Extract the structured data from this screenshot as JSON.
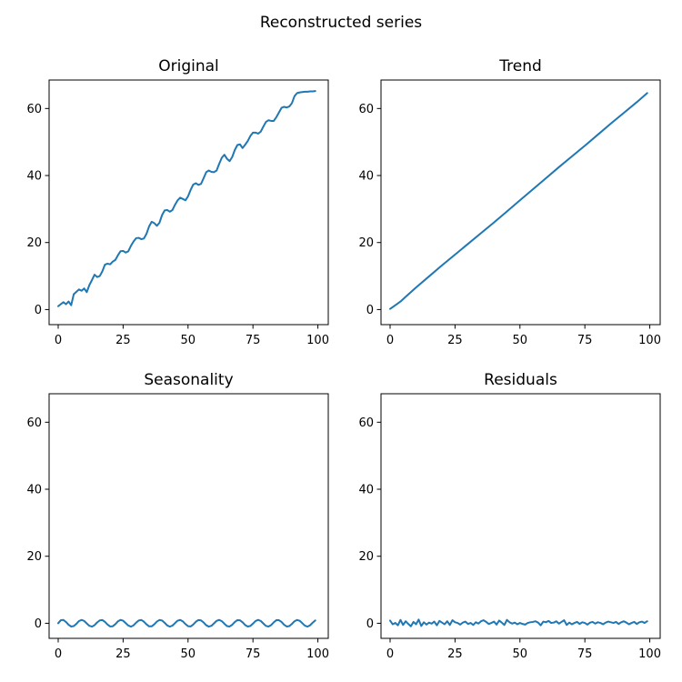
{
  "figure_title": "Reconstructed series",
  "chart_data": [
    {
      "type": "line",
      "title": "Original",
      "xlabel": "",
      "ylabel": "",
      "xlim": [
        -3.5,
        104
      ],
      "ylim": [
        -4.5,
        68.5
      ],
      "x_ticks": [
        0,
        25,
        50,
        75,
        100
      ],
      "y_ticks": [
        0,
        20,
        40,
        60
      ],
      "grid": false,
      "color": "#1f77b4",
      "series": [
        {
          "x": [
            0,
            1,
            2,
            3,
            4,
            5,
            6,
            7,
            8,
            9,
            10,
            11,
            12,
            13,
            14,
            15,
            16,
            17,
            18,
            19,
            20,
            21,
            22,
            23,
            24,
            25,
            26,
            27,
            28,
            29,
            30,
            31,
            32,
            33,
            34,
            35,
            36,
            37,
            38,
            39,
            40,
            41,
            42,
            43,
            44,
            45,
            46,
            47,
            48,
            49,
            50,
            51,
            52,
            53,
            54,
            55,
            56,
            57,
            58,
            59,
            60,
            61,
            62,
            63,
            64,
            65,
            66,
            67,
            68,
            69,
            70,
            71,
            72,
            73,
            74,
            75,
            76,
            77,
            78,
            79,
            80,
            81,
            82,
            83,
            84,
            85,
            86,
            87,
            88,
            89,
            90,
            91,
            92,
            93,
            94,
            95,
            96,
            97,
            98,
            99
          ],
          "values": [
            1.0,
            1.6,
            2.2,
            1.6,
            2.4,
            1.3,
            4.6,
            5.3,
            6.0,
            5.6,
            6.3,
            5.2,
            7.3,
            8.8,
            10.4,
            9.7,
            10.0,
            11.4,
            13.4,
            13.7,
            13.5,
            14.3,
            14.8,
            16.2,
            17.4,
            17.5,
            17.0,
            17.4,
            19.0,
            20.3,
            21.3,
            21.4,
            21.0,
            21.2,
            22.6,
            24.8,
            26.2,
            25.8,
            25.0,
            25.9,
            28.2,
            29.6,
            29.7,
            29.2,
            29.7,
            31.3,
            32.6,
            33.4,
            33.0,
            32.6,
            33.8,
            35.7,
            37.3,
            37.7,
            37.2,
            37.5,
            39.2,
            41.0,
            41.5,
            41.1,
            41.0,
            41.5,
            43.5,
            45.3,
            46.2,
            45.0,
            44.3,
            45.5,
            47.6,
            49.1,
            49.3,
            48.2,
            49.2,
            50.3,
            51.8,
            52.8,
            52.8,
            52.5,
            53.1,
            54.6,
            56.0,
            56.5,
            56.3,
            56.3,
            57.4,
            58.8,
            60.2,
            60.5,
            60.3,
            60.6,
            61.6,
            63.7,
            64.6,
            64.8,
            64.9,
            65.0,
            65.0,
            65.1,
            65.1,
            65.2
          ]
        }
      ]
    },
    {
      "type": "line",
      "title": "Trend",
      "xlabel": "",
      "ylabel": "",
      "xlim": [
        -3.5,
        104
      ],
      "ylim": [
        -4.5,
        68.5
      ],
      "x_ticks": [
        0,
        25,
        50,
        75,
        100
      ],
      "y_ticks": [
        0,
        20,
        40,
        60
      ],
      "grid": false,
      "color": "#1f77b4",
      "series": [
        {
          "x": [
            0,
            2,
            4,
            6,
            8,
            10,
            15,
            20,
            25,
            30,
            35,
            40,
            45,
            50,
            55,
            60,
            65,
            70,
            75,
            80,
            85,
            90,
            95,
            99
          ],
          "values": [
            0.2,
            1.3,
            2.4,
            3.8,
            5.2,
            6.6,
            9.9,
            13.2,
            16.4,
            19.6,
            22.8,
            26.0,
            29.3,
            32.6,
            35.9,
            39.2,
            42.5,
            45.7,
            48.9,
            52.2,
            55.5,
            58.7,
            61.9,
            64.6
          ]
        }
      ]
    },
    {
      "type": "line",
      "title": "Seasonality",
      "xlabel": "",
      "ylabel": "",
      "xlim": [
        -3.5,
        104
      ],
      "ylim": [
        -4.5,
        68.5
      ],
      "x_ticks": [
        0,
        25,
        50,
        75,
        100
      ],
      "y_ticks": [
        0,
        20,
        40,
        60
      ],
      "grid": false,
      "color": "#1f77b4",
      "series": [
        {
          "x": [
            0,
            1,
            2,
            3,
            4,
            5,
            6,
            7,
            8,
            9,
            10,
            11,
            12,
            13,
            14,
            15,
            16,
            17,
            18,
            19,
            20,
            21,
            22,
            23,
            24,
            25,
            26,
            27,
            28,
            29,
            30,
            31,
            32,
            33,
            34,
            35,
            36,
            37,
            38,
            39,
            40,
            41,
            42,
            43,
            44,
            45,
            46,
            47,
            48,
            49,
            50,
            51,
            52,
            53,
            54,
            55,
            56,
            57,
            58,
            59,
            60,
            61,
            62,
            63,
            64,
            65,
            66,
            67,
            68,
            69,
            70,
            71,
            72,
            73,
            74,
            75,
            76,
            77,
            78,
            79,
            80,
            81,
            82,
            83,
            84,
            85,
            86,
            87,
            88,
            89,
            90,
            91,
            92,
            93,
            94,
            95,
            96,
            97,
            98,
            99
          ],
          "values": [
            0.0,
            0.91,
            1.0,
            0.39,
            -0.45,
            -0.97,
            -0.85,
            -0.17,
            0.66,
            1.0,
            0.69,
            -0.06,
            -0.76,
            -0.99,
            -0.56,
            0.25,
            0.86,
            0.96,
            0.43,
            -0.39,
            -0.94,
            -0.89,
            -0.27,
            0.58,
            0.99,
            0.77,
            0.05,
            -0.69,
            -1.0,
            -0.63,
            0.17,
            0.82,
            0.98,
            0.48,
            -0.32,
            -0.91,
            -0.92,
            -0.32,
            0.5,
            0.98,
            0.82,
            0.15,
            -0.65,
            -1.0,
            -0.7,
            0.07,
            0.78,
            0.99,
            0.56,
            -0.23,
            -0.88,
            -0.94,
            -0.38,
            0.45,
            0.97,
            0.86,
            0.24,
            -0.58,
            -0.99,
            -0.76,
            -0.02,
            0.72,
            1.0,
            0.63,
            -0.15,
            -0.84,
            -0.96,
            -0.46,
            0.37,
            0.94,
            0.89,
            0.31,
            -0.52,
            -0.98,
            -0.81,
            -0.1,
            0.67,
            1.0,
            0.69,
            -0.06,
            -0.79,
            -0.98,
            -0.54,
            0.28,
            0.91,
            0.92,
            0.39,
            -0.45,
            -0.96,
            -0.85,
            -0.19,
            0.6,
            0.99,
            0.75,
            0.03,
            -0.72,
            -1.0,
            -0.6,
            0.19,
            0.86
          ]
        }
      ]
    },
    {
      "type": "line",
      "title": "Residuals",
      "xlabel": "",
      "ylabel": "",
      "xlim": [
        -3.5,
        104
      ],
      "ylim": [
        -4.5,
        68.5
      ],
      "x_ticks": [
        0,
        25,
        50,
        75,
        100
      ],
      "y_ticks": [
        0,
        20,
        40,
        60
      ],
      "grid": false,
      "color": "#1f77b4",
      "series": [
        {
          "x": [
            0,
            1,
            2,
            3,
            4,
            5,
            6,
            7,
            8,
            9,
            10,
            11,
            12,
            13,
            14,
            15,
            16,
            17,
            18,
            19,
            20,
            21,
            22,
            23,
            24,
            25,
            26,
            27,
            28,
            29,
            30,
            31,
            32,
            33,
            34,
            35,
            36,
            37,
            38,
            39,
            40,
            41,
            42,
            43,
            44,
            45,
            46,
            47,
            48,
            49,
            50,
            51,
            52,
            53,
            54,
            55,
            56,
            57,
            58,
            59,
            60,
            61,
            62,
            63,
            64,
            65,
            66,
            67,
            68,
            69,
            70,
            71,
            72,
            73,
            74,
            75,
            76,
            77,
            78,
            79,
            80,
            81,
            82,
            83,
            84,
            85,
            86,
            87,
            88,
            89,
            90,
            91,
            92,
            93,
            94,
            95,
            96,
            97,
            98,
            99
          ],
          "values": [
            0.8,
            -0.3,
            0.1,
            -0.6,
            1.0,
            -0.5,
            0.6,
            -0.2,
            -0.9,
            0.4,
            -0.3,
            1.1,
            -0.8,
            0.3,
            -0.4,
            0.2,
            -0.1,
            0.5,
            -0.6,
            0.7,
            0.2,
            -0.3,
            0.6,
            -0.5,
            0.9,
            0.3,
            0.1,
            -0.4,
            0.2,
            0.5,
            -0.2,
            0.1,
            -0.5,
            0.3,
            -0.1,
            0.6,
            0.9,
            0.4,
            -0.2,
            0.1,
            0.5,
            -0.4,
            0.8,
            0.2,
            -0.5,
            1.0,
            0.3,
            -0.1,
            0.2,
            -0.3,
            0.1,
            -0.2,
            -0.4,
            0.1,
            0.3,
            0.4,
            0.6,
            0.2,
            -0.6,
            0.5,
            0.3,
            0.7,
            0.1,
            0.2,
            0.6,
            -0.1,
            0.4,
            0.9,
            -0.5,
            0.2,
            -0.3,
            0.1,
            0.4,
            -0.2,
            0.3,
            0.1,
            -0.4,
            0.2,
            0.4,
            -0.1,
            0.3,
            0.1,
            -0.3,
            0.2,
            0.5,
            0.3,
            0.1,
            0.4,
            -0.2,
            0.3,
            0.6,
            0.2,
            -0.3,
            0.1,
            0.4,
            -0.2,
            0.3,
            0.5,
            0.1,
            0.6
          ]
        }
      ]
    }
  ]
}
